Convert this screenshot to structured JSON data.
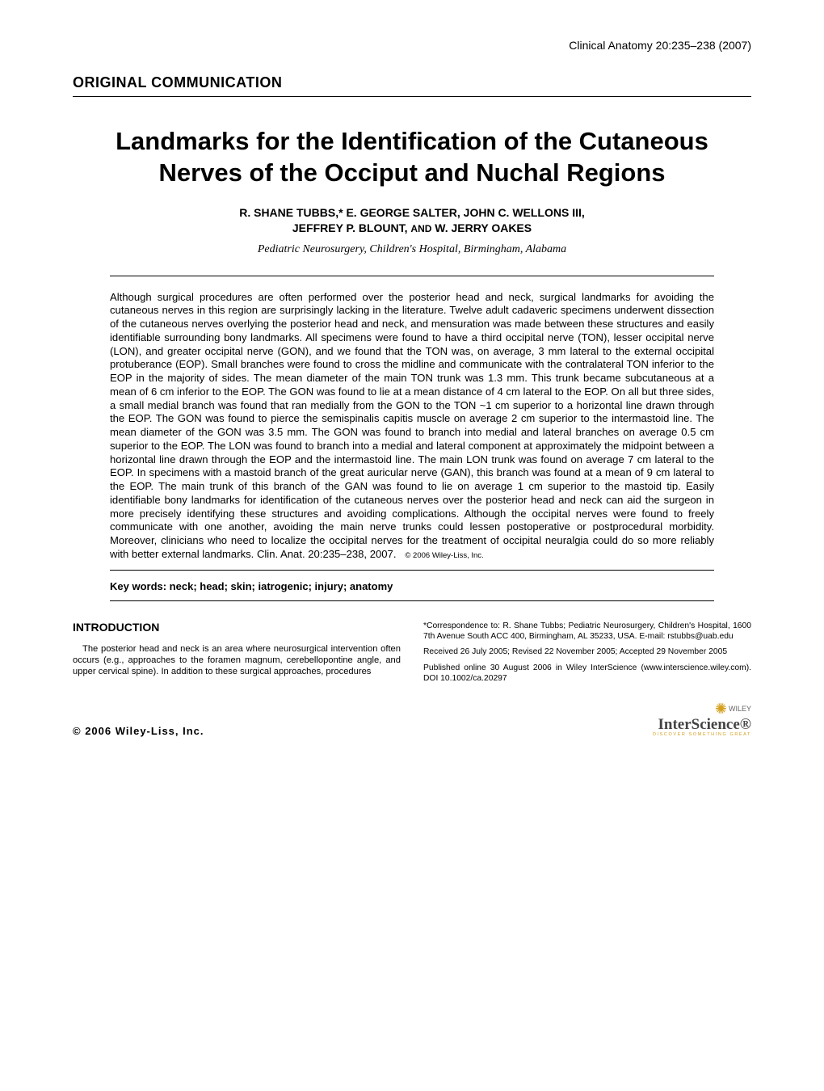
{
  "journal": "Clinical Anatomy 20:235–238 (2007)",
  "section_label": "ORIGINAL COMMUNICATION",
  "title": "Landmarks for the Identification of the Cutaneous Nerves of the Occiput and Nuchal Regions",
  "authors_line1": "R. SHANE TUBBS,* E. GEORGE SALTER, JOHN C. WELLONS III,",
  "authors_line2_a": "JEFFREY P. BLOUNT, ",
  "authors_line2_and": "AND",
  "authors_line2_b": " W. JERRY OAKES",
  "affiliation": "Pediatric Neurosurgery, Children's Hospital, Birmingham, Alabama",
  "abstract": "Although surgical procedures are often performed over the posterior head and neck, surgical landmarks for avoiding the cutaneous nerves in this region are surprisingly lacking in the literature. Twelve adult cadaveric specimens underwent dissection of the cutaneous nerves overlying the posterior head and neck, and mensuration was made between these structures and easily identifiable surrounding bony landmarks. All specimens were found to have a third occipital nerve (TON), lesser occipital nerve (LON), and greater occipital nerve (GON), and we found that the TON was, on average, 3 mm lateral to the external occipital protuberance (EOP). Small branches were found to cross the midline and communicate with the contralateral TON inferior to the EOP in the majority of sides. The mean diameter of the main TON trunk was 1.3 mm. This trunk became subcutaneous at a mean of 6 cm inferior to the EOP. The GON was found to lie at a mean distance of 4 cm lateral to the EOP. On all but three sides, a small medial branch was found that ran medially from the GON to the TON ~1 cm superior to a horizontal line drawn through the EOP. The GON was found to pierce the semispinalis capitis muscle on average 2 cm superior to the intermastoid line. The mean diameter of the GON was 3.5 mm. The GON was found to branch into medial and lateral branches on average 0.5 cm superior to the EOP. The LON was found to branch into a medial and lateral component at approximately the midpoint between a horizontal line drawn through the EOP and the intermastoid line. The main LON trunk was found on average 7 cm lateral to the EOP. In specimens with a mastoid branch of the great auricular nerve (GAN), this branch was found at a mean of 9 cm lateral to the EOP. The main trunk of this branch of the GAN was found to lie on average 1 cm superior to the mastoid tip. Easily identifiable bony landmarks for identification of the cutaneous nerves over the posterior head and neck can aid the surgeon in more precisely identifying these structures and avoiding complications. Although the occipital nerves were found to freely communicate with one another, avoiding the main nerve trunks could lessen postoperative or postprocedural morbidity. Moreover, clinicians who need to localize the occipital nerves for the treatment of occipital neuralgia could do so more reliably with better external landmarks. Clin. Anat. 20:235–238, 2007.",
  "abstract_copyright": "© 2006 Wiley-Liss, Inc.",
  "keywords": "Key words: neck; head; skin; iatrogenic; injury; anatomy",
  "intro_heading": "INTRODUCTION",
  "intro_text": "The posterior head and neck is an area where neurosurgical intervention often occurs (e.g., approaches to the foramen magnum, cerebellopontine angle, and upper cervical spine). In addition to these surgical approaches, procedures",
  "correspondence": "*Correspondence to: R. Shane Tubbs; Pediatric Neurosurgery, Children's Hospital, 1600 7th Avenue South ACC 400, Birmingham, AL 35233, USA. E-mail: rstubbs@uab.edu",
  "received": "Received 26 July 2005; Revised 22 November 2005; Accepted 29 November 2005",
  "published": "Published online 30 August 2006 in Wiley InterScience (www.interscience.wiley.com). DOI 10.1002/ca.20297",
  "publisher": "© 2006  Wiley-Liss,  Inc.",
  "logo": {
    "top": "WILEY",
    "main": "InterScience®",
    "sub": "DISCOVER SOMETHING GREAT"
  }
}
